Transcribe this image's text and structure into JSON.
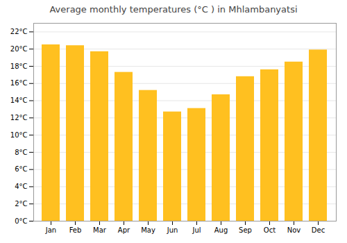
{
  "chart_data": {
    "type": "bar",
    "title": "Average monthly temperatures (°C ) in Mhlambanyatsi",
    "categories": [
      "Jan",
      "Feb",
      "Mar",
      "Apr",
      "May",
      "Jun",
      "Jul",
      "Aug",
      "Sep",
      "Oct",
      "Nov",
      "Dec"
    ],
    "values": [
      20.5,
      20.4,
      19.7,
      17.3,
      15.2,
      12.7,
      13.1,
      14.7,
      16.8,
      17.6,
      18.5,
      19.9
    ],
    "color": "#FFC020",
    "ylim": [
      0,
      23
    ],
    "yticks": [
      {
        "value": 0,
        "label": "0°C"
      },
      {
        "value": 2,
        "label": "2°C"
      },
      {
        "value": 4,
        "label": "4°C"
      },
      {
        "value": 6,
        "label": "6°C"
      },
      {
        "value": 8,
        "label": "8°C"
      },
      {
        "value": 10,
        "label": "10°C"
      },
      {
        "value": 12,
        "label": "12°C"
      },
      {
        "value": 14,
        "label": "14°C"
      },
      {
        "value": 16,
        "label": "16°C"
      },
      {
        "value": 18,
        "label": "18°C"
      },
      {
        "value": 20,
        "label": "20°C"
      },
      {
        "value": 22,
        "label": "22°C"
      }
    ],
    "grid": true
  }
}
